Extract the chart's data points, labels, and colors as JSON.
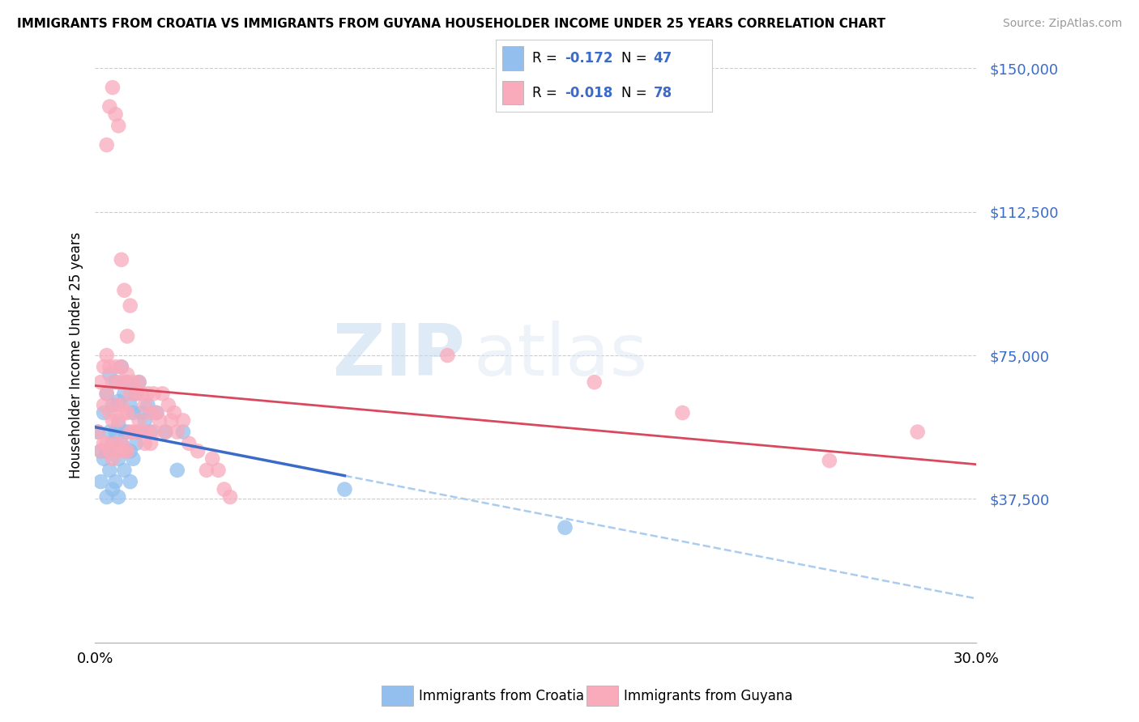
{
  "title": "IMMIGRANTS FROM CROATIA VS IMMIGRANTS FROM GUYANA HOUSEHOLDER INCOME UNDER 25 YEARS CORRELATION CHART",
  "source": "Source: ZipAtlas.com",
  "ylabel": "Householder Income Under 25 years",
  "xmin": 0.0,
  "xmax": 0.3,
  "ymin": 0,
  "ymax": 150000,
  "yticks": [
    37500,
    75000,
    112500,
    150000
  ],
  "ytick_labels": [
    "$37,500",
    "$75,000",
    "$112,500",
    "$150,000"
  ],
  "xtick_labels_show": [
    "0.0%",
    "30.0%"
  ],
  "legend_label1": "Immigrants from Croatia",
  "legend_label2": "Immigrants from Guyana",
  "R1": -0.172,
  "N1": 47,
  "R2": -0.018,
  "N2": 78,
  "color1": "#92BFED",
  "color2": "#F9AABB",
  "trendline1_color": "#3A6BC9",
  "trendline2_color": "#D9495E",
  "watermark_zip": "ZIP",
  "watermark_atlas": "atlas",
  "background_color": "#ffffff",
  "grid_color": "#cccccc",
  "croatia_x": [
    0.001,
    0.002,
    0.002,
    0.003,
    0.003,
    0.004,
    0.004,
    0.004,
    0.005,
    0.005,
    0.005,
    0.006,
    0.006,
    0.006,
    0.007,
    0.007,
    0.007,
    0.008,
    0.008,
    0.008,
    0.008,
    0.009,
    0.009,
    0.01,
    0.01,
    0.01,
    0.011,
    0.011,
    0.012,
    0.012,
    0.012,
    0.013,
    0.013,
    0.014,
    0.014,
    0.015,
    0.015,
    0.016,
    0.017,
    0.018,
    0.019,
    0.021,
    0.024,
    0.028,
    0.03,
    0.085,
    0.16
  ],
  "croatia_y": [
    55000,
    50000,
    42000,
    60000,
    48000,
    65000,
    50000,
    38000,
    70000,
    55000,
    45000,
    62000,
    52000,
    40000,
    68000,
    55000,
    42000,
    63000,
    57000,
    48000,
    38000,
    72000,
    52000,
    65000,
    55000,
    45000,
    68000,
    55000,
    62000,
    50000,
    42000,
    60000,
    48000,
    65000,
    52000,
    68000,
    55000,
    60000,
    58000,
    62000,
    55000,
    60000,
    55000,
    45000,
    55000,
    40000,
    30000
  ],
  "guyana_x": [
    0.001,
    0.002,
    0.002,
    0.003,
    0.003,
    0.003,
    0.004,
    0.004,
    0.004,
    0.005,
    0.005,
    0.005,
    0.006,
    0.006,
    0.006,
    0.007,
    0.007,
    0.007,
    0.008,
    0.008,
    0.008,
    0.009,
    0.009,
    0.009,
    0.01,
    0.01,
    0.01,
    0.011,
    0.011,
    0.011,
    0.012,
    0.012,
    0.013,
    0.013,
    0.014,
    0.014,
    0.015,
    0.015,
    0.016,
    0.016,
    0.017,
    0.017,
    0.018,
    0.018,
    0.019,
    0.019,
    0.02,
    0.02,
    0.021,
    0.022,
    0.023,
    0.024,
    0.025,
    0.026,
    0.027,
    0.028,
    0.03,
    0.032,
    0.035,
    0.038,
    0.04,
    0.042,
    0.044,
    0.046,
    0.004,
    0.005,
    0.006,
    0.007,
    0.008,
    0.009,
    0.01,
    0.011,
    0.012,
    0.12,
    0.17,
    0.2,
    0.25,
    0.28
  ],
  "guyana_y": [
    55000,
    68000,
    50000,
    72000,
    62000,
    52000,
    75000,
    65000,
    52000,
    72000,
    60000,
    50000,
    68000,
    58000,
    48000,
    72000,
    62000,
    52000,
    68000,
    58000,
    50000,
    72000,
    62000,
    52000,
    68000,
    60000,
    50000,
    70000,
    60000,
    50000,
    65000,
    55000,
    68000,
    55000,
    65000,
    55000,
    68000,
    58000,
    65000,
    55000,
    62000,
    52000,
    65000,
    55000,
    60000,
    52000,
    65000,
    55000,
    60000,
    58000,
    65000,
    55000,
    62000,
    58000,
    60000,
    55000,
    58000,
    52000,
    50000,
    45000,
    48000,
    45000,
    40000,
    38000,
    130000,
    140000,
    145000,
    138000,
    135000,
    100000,
    92000,
    80000,
    88000,
    75000,
    68000,
    60000,
    47500,
    55000
  ]
}
